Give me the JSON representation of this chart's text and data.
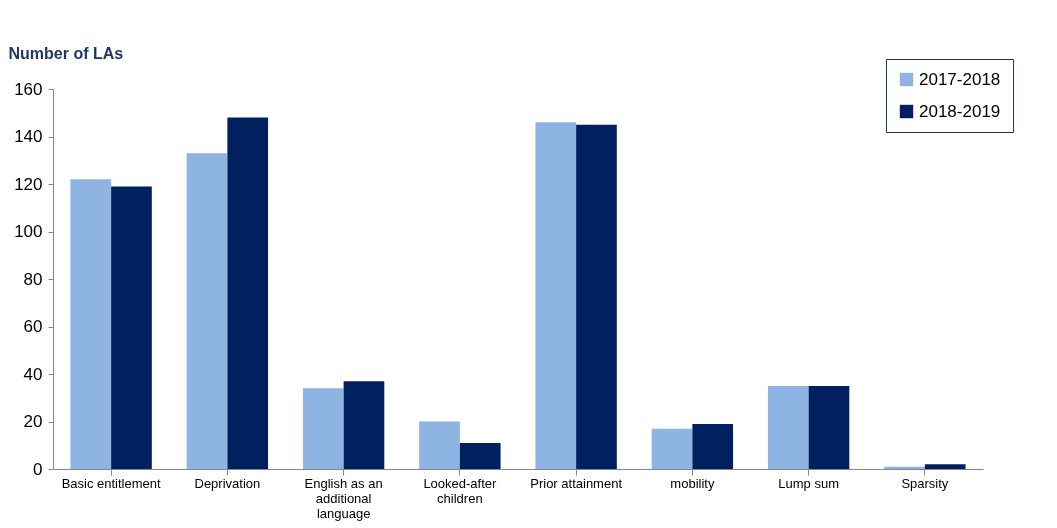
{
  "chart_data": {
    "type": "bar",
    "ylabel": "Number of LAs",
    "categories": [
      "Basic entitlement",
      "Deprivation",
      "English as an additional language",
      "Looked-after children",
      "Prior attainment",
      "mobility",
      "Lump sum",
      "Sparsity"
    ],
    "series": [
      {
        "name": "2017-2018",
        "color": "#8eb4e3",
        "values": [
          122,
          133,
          34,
          20,
          146,
          17,
          35,
          1
        ]
      },
      {
        "name": "2018-2019",
        "color": "#002060",
        "values": [
          119,
          148,
          37,
          11,
          145,
          19,
          35,
          2
        ]
      }
    ],
    "ylim": [
      0,
      160
    ],
    "yticks": [
      0,
      20,
      40,
      60,
      80,
      100,
      120,
      140,
      160
    ],
    "grid": false,
    "legend": "top right"
  }
}
